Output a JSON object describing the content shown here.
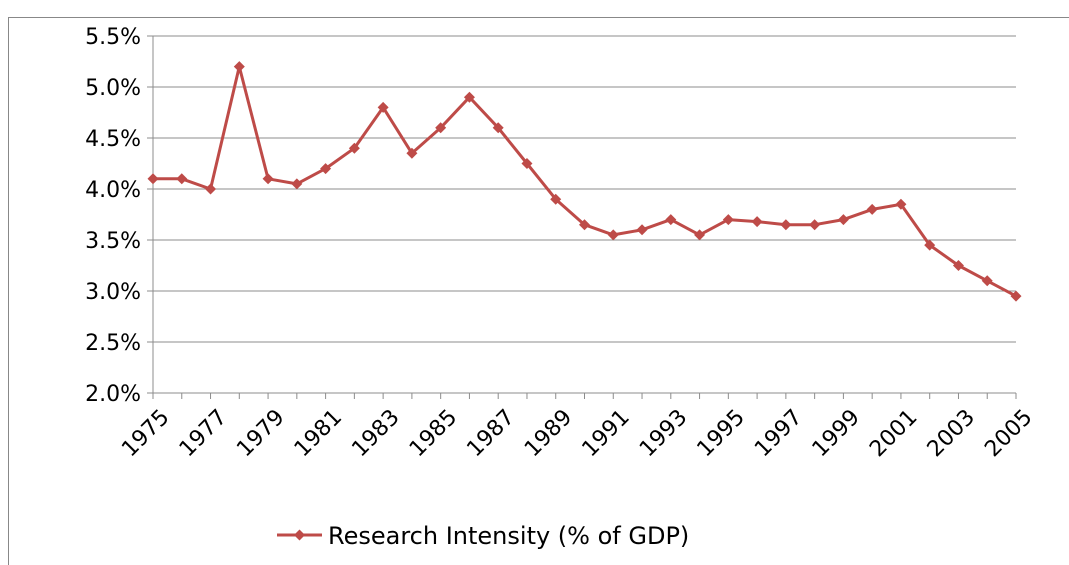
{
  "chart_data": {
    "type": "line",
    "categories": [
      "1975",
      null,
      "1977",
      null,
      "1979",
      null,
      "1981",
      null,
      "1983",
      null,
      "1985",
      null,
      "1987",
      null,
      "1989",
      null,
      "1991",
      null,
      "1993",
      null,
      "1995",
      null,
      "1997",
      null,
      "1999",
      null,
      "2001",
      null,
      "2003",
      null,
      "2005"
    ],
    "series": [
      {
        "name": "Research Intensity (% of GDP)",
        "color": "#be4b48",
        "values": [
          4.1,
          4.1,
          4.0,
          5.2,
          4.1,
          4.05,
          4.2,
          4.4,
          4.8,
          4.35,
          4.6,
          4.9,
          4.6,
          4.25,
          3.9,
          3.65,
          3.55,
          3.6,
          3.7,
          3.55,
          3.7,
          3.68,
          3.65,
          3.65,
          3.7,
          3.8,
          3.85,
          3.45,
          3.25,
          3.1,
          2.95
        ]
      }
    ],
    "ylim": [
      2.0,
      5.5
    ],
    "yticks": [
      {
        "value": 2.0,
        "label": "2.0%"
      },
      {
        "value": 2.5,
        "label": "2.5%"
      },
      {
        "value": 3.0,
        "label": "3.0%"
      },
      {
        "value": 3.5,
        "label": "3.5%"
      },
      {
        "value": 4.0,
        "label": "4.0%"
      },
      {
        "value": 4.5,
        "label": "4.5%"
      },
      {
        "value": 5.0,
        "label": "5.0%"
      },
      {
        "value": 5.5,
        "label": "5.5%"
      }
    ],
    "grid": true,
    "legend": "bottom"
  }
}
